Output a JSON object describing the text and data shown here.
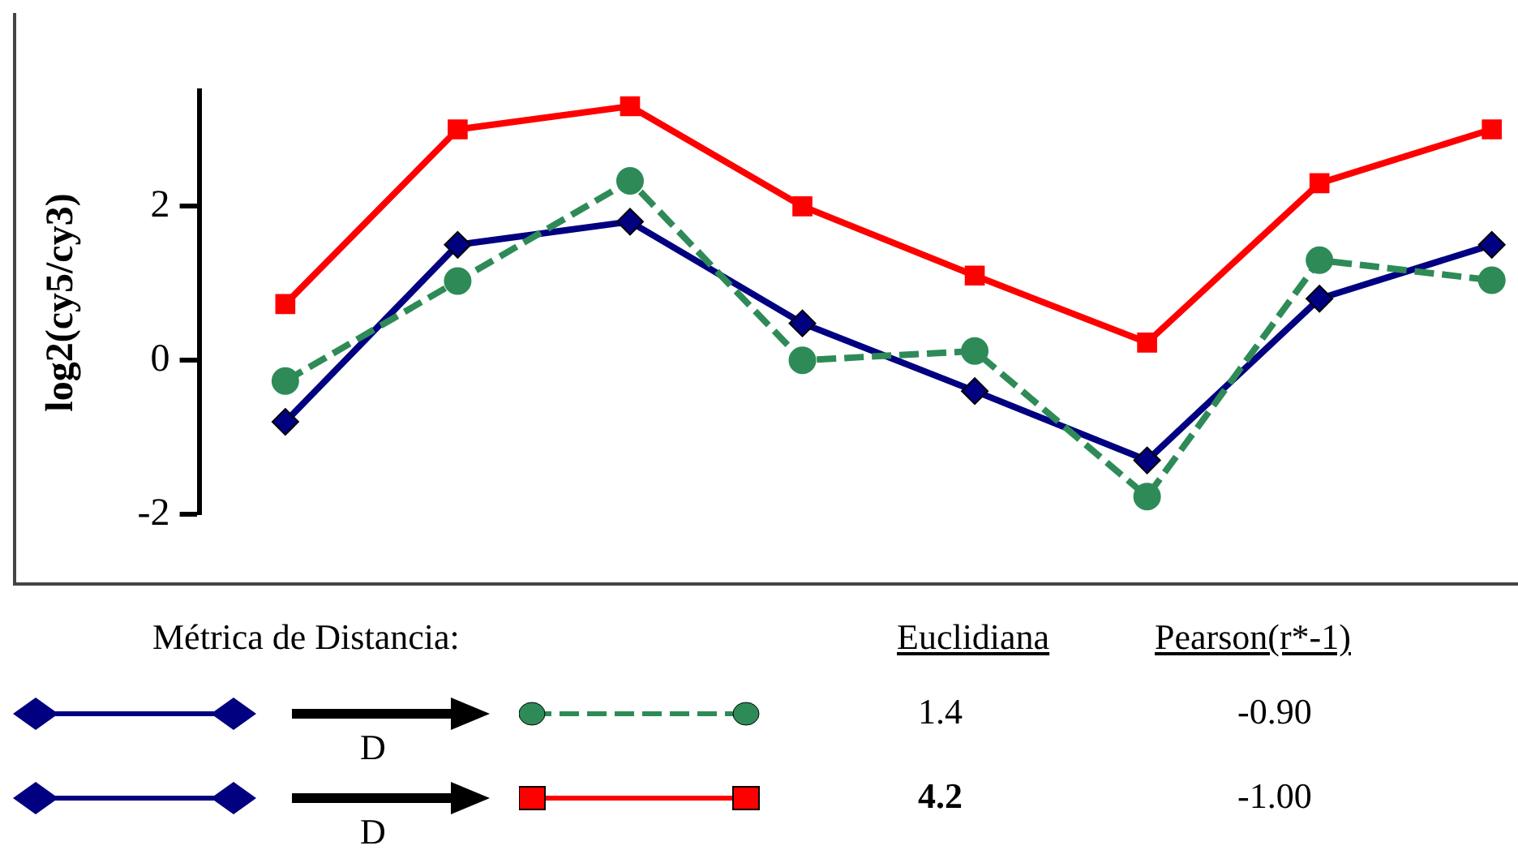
{
  "chart_data": {
    "type": "line",
    "ylabel": "log2(cy5/cy3)",
    "categories": [
      null,
      null,
      null,
      null,
      null,
      null,
      null,
      null
    ],
    "series": [
      {
        "color": "#ff0000",
        "marker": "square",
        "line_style": "solid",
        "values": [
          0.73,
          3.0,
          3.3,
          2.0,
          1.1,
          0.23,
          2.3,
          3.0
        ]
      },
      {
        "color": "#2e8b57",
        "marker": "circle",
        "line_style": "dashed",
        "values": [
          -0.27,
          1.03,
          2.33,
          0.0,
          0.12,
          -1.77,
          1.3,
          1.04
        ]
      },
      {
        "color": "#000080",
        "marker": "diamond",
        "line_style": "solid",
        "values": [
          -0.8,
          1.5,
          1.8,
          0.48,
          -0.4,
          -1.3,
          0.8,
          1.5
        ]
      }
    ],
    "ylim": [
      -2,
      3.5
    ],
    "yticks": [
      -2,
      0,
      2
    ],
    "grid": false,
    "legend": false,
    "tick_labels": "y",
    "annotations": [
      "Métrica de Distancia:",
      "Euclidiana",
      "Pearson(r*-1)",
      "D",
      "1.4",
      "-0.90",
      "D",
      "4.2",
      "-1.00"
    ]
  }
}
